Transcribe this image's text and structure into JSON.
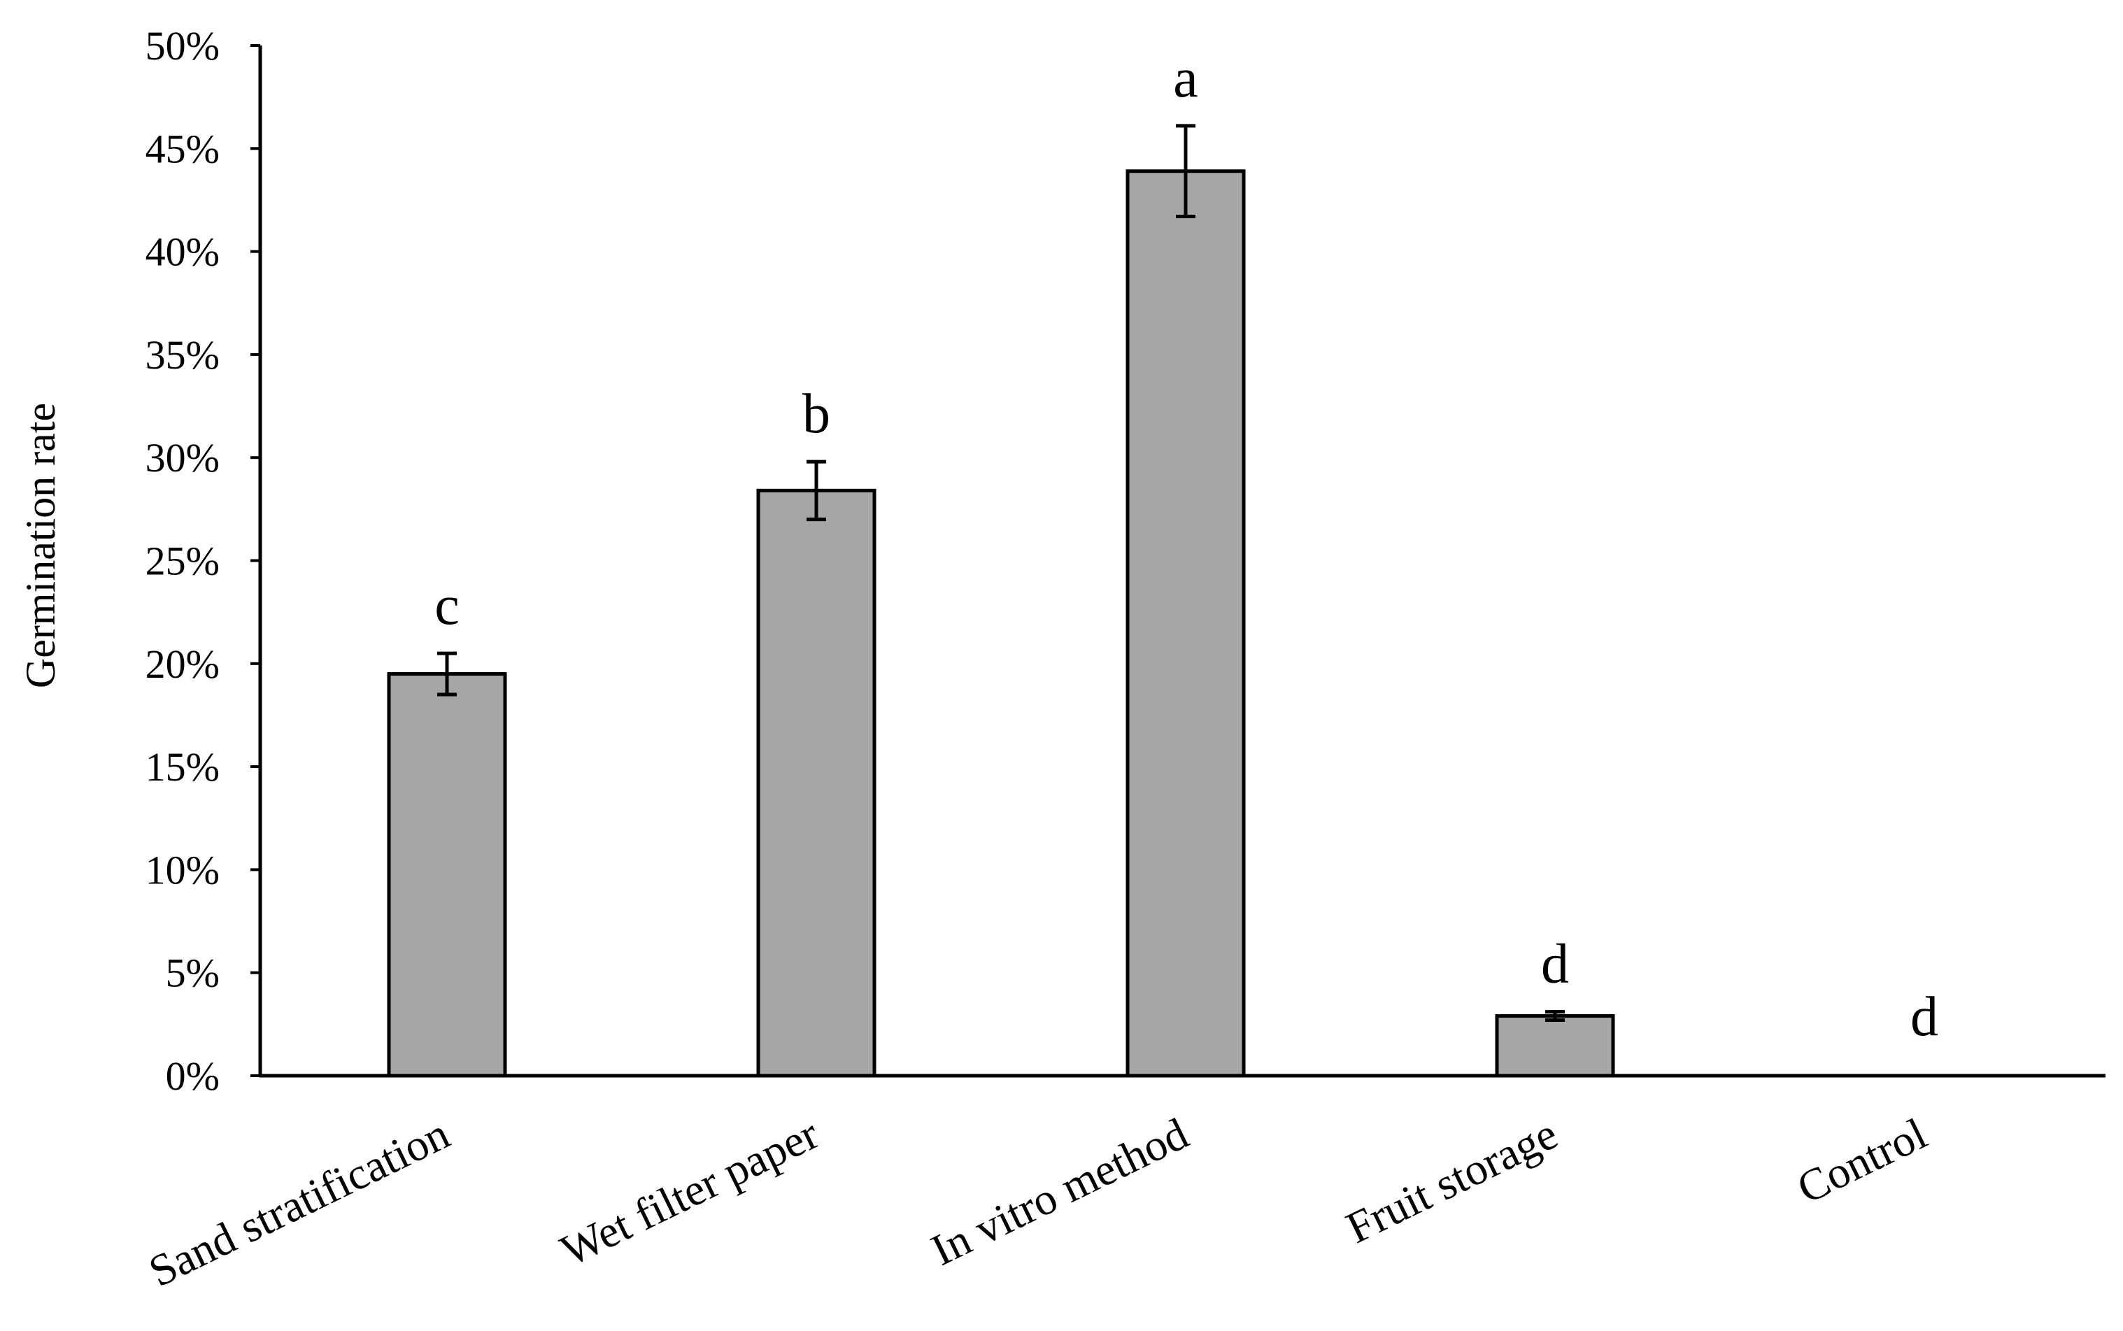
{
  "chart_data": {
    "type": "bar",
    "title": "",
    "xlabel": "",
    "ylabel": "Germination rate",
    "categories": [
      "Sand stratification",
      "Wet filter paper",
      "In vitro method",
      "Fruit storage",
      "Control"
    ],
    "values": [
      19.5,
      28.4,
      43.9,
      2.9,
      0
    ],
    "errors": [
      1.0,
      1.4,
      2.2,
      0.2,
      0
    ],
    "significance_letters": [
      "c",
      "b",
      "a",
      "d",
      "d"
    ],
    "ylim": [
      0,
      50
    ],
    "yticks": [
      0,
      5,
      10,
      15,
      20,
      25,
      30,
      35,
      40,
      45,
      50
    ],
    "ytick_labels": [
      "0%",
      "5%",
      "10%",
      "15%",
      "20%",
      "25%",
      "30%",
      "35%",
      "40%",
      "45%",
      "50%"
    ],
    "unit": "%",
    "grid": false,
    "legend": "none",
    "bar_color": "#a6a6a6",
    "bar_edge_color": "#000000"
  }
}
